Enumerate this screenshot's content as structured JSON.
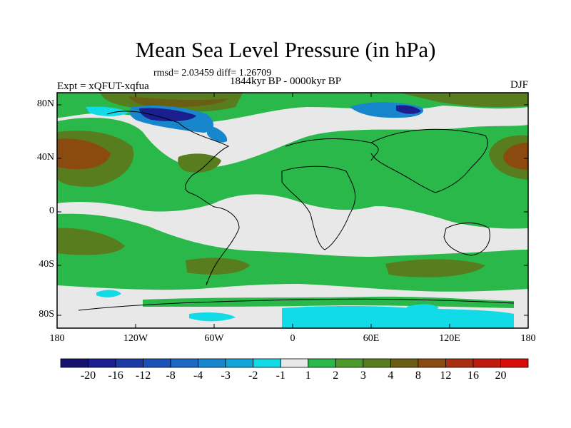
{
  "header": {
    "title": "Mean Sea Level Pressure (in hPa)",
    "stats": "rmsd= 2.03459  diff= 1.26709",
    "period": "1844kyr BP - 0000kyr BP",
    "experiment": "Expt = xQFUT-xqfua",
    "season": "DJF"
  },
  "axes": {
    "lat_labels": [
      "80N",
      "40N",
      "0",
      "40S",
      "80S"
    ],
    "lon_labels": [
      "180",
      "120W",
      "60W",
      "0",
      "60E",
      "120E",
      "180"
    ]
  },
  "colorbar": {
    "labels": [
      "-20",
      "-16",
      "-12",
      "-8",
      "-4",
      "-3",
      "-2",
      "-1",
      "1",
      "2",
      "3",
      "4",
      "8",
      "12",
      "16",
      "20"
    ],
    "colors": [
      "#16116e",
      "#1a1e8e",
      "#1b3aa6",
      "#1a52b8",
      "#1c68c4",
      "#1786cc",
      "#0fa5d8",
      "#12dbe8",
      "#e8e8e8",
      "#2ab84a",
      "#4c9a2a",
      "#577d1e",
      "#6a5e14",
      "#8a4a10",
      "#a83010",
      "#c01a0e",
      "#d80c0a"
    ]
  },
  "colors": {
    "neutral": "#e8e8e8",
    "green": "#2ab84a",
    "olive": "#577d1e",
    "brown": "#8a4a10",
    "cyan": "#12dbe8",
    "blue": "#1786cc",
    "navy": "#1a1e8e"
  }
}
